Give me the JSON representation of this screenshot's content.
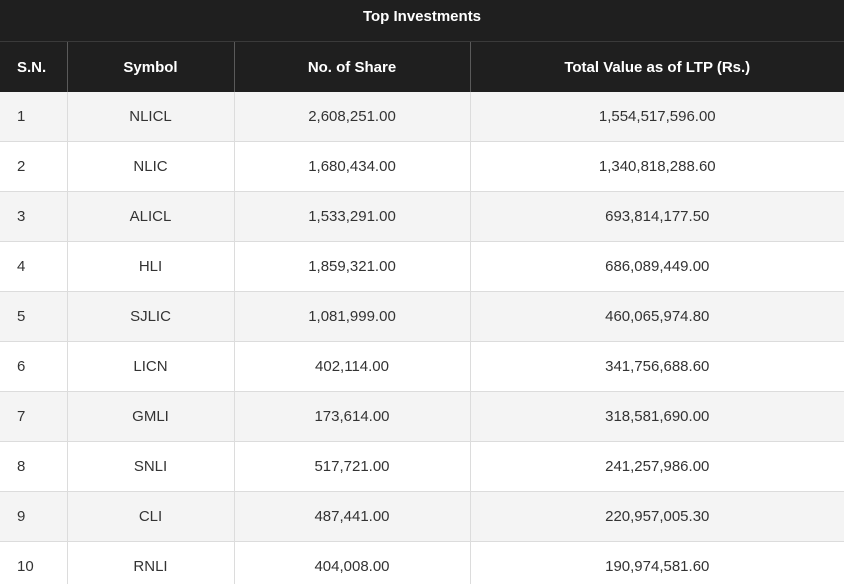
{
  "caption": "Top Investments",
  "headers": {
    "sn": "S.N.",
    "symbol": "Symbol",
    "shares": "No. of Share",
    "value": "Total Value as of LTP (Rs.)"
  },
  "rows": [
    {
      "sn": "1",
      "symbol": "NLICL",
      "shares": "2,608,251.00",
      "value": "1,554,517,596.00"
    },
    {
      "sn": "2",
      "symbol": "NLIC",
      "shares": "1,680,434.00",
      "value": "1,340,818,288.60"
    },
    {
      "sn": "3",
      "symbol": "ALICL",
      "shares": "1,533,291.00",
      "value": "693,814,177.50"
    },
    {
      "sn": "4",
      "symbol": "HLI",
      "shares": "1,859,321.00",
      "value": "686,089,449.00"
    },
    {
      "sn": "5",
      "symbol": "SJLIC",
      "shares": "1,081,999.00",
      "value": "460,065,974.80"
    },
    {
      "sn": "6",
      "symbol": "LICN",
      "shares": "402,114.00",
      "value": "341,756,688.60"
    },
    {
      "sn": "7",
      "symbol": "GMLI",
      "shares": "173,614.00",
      "value": "318,581,690.00"
    },
    {
      "sn": "8",
      "symbol": "SNLI",
      "shares": "517,721.00",
      "value": "241,257,986.00"
    },
    {
      "sn": "9",
      "symbol": "CLI",
      "shares": "487,441.00",
      "value": "220,957,005.30"
    },
    {
      "sn": "10",
      "symbol": "RNLI",
      "shares": "404,008.00",
      "value": "190,974,581.60"
    }
  ]
}
